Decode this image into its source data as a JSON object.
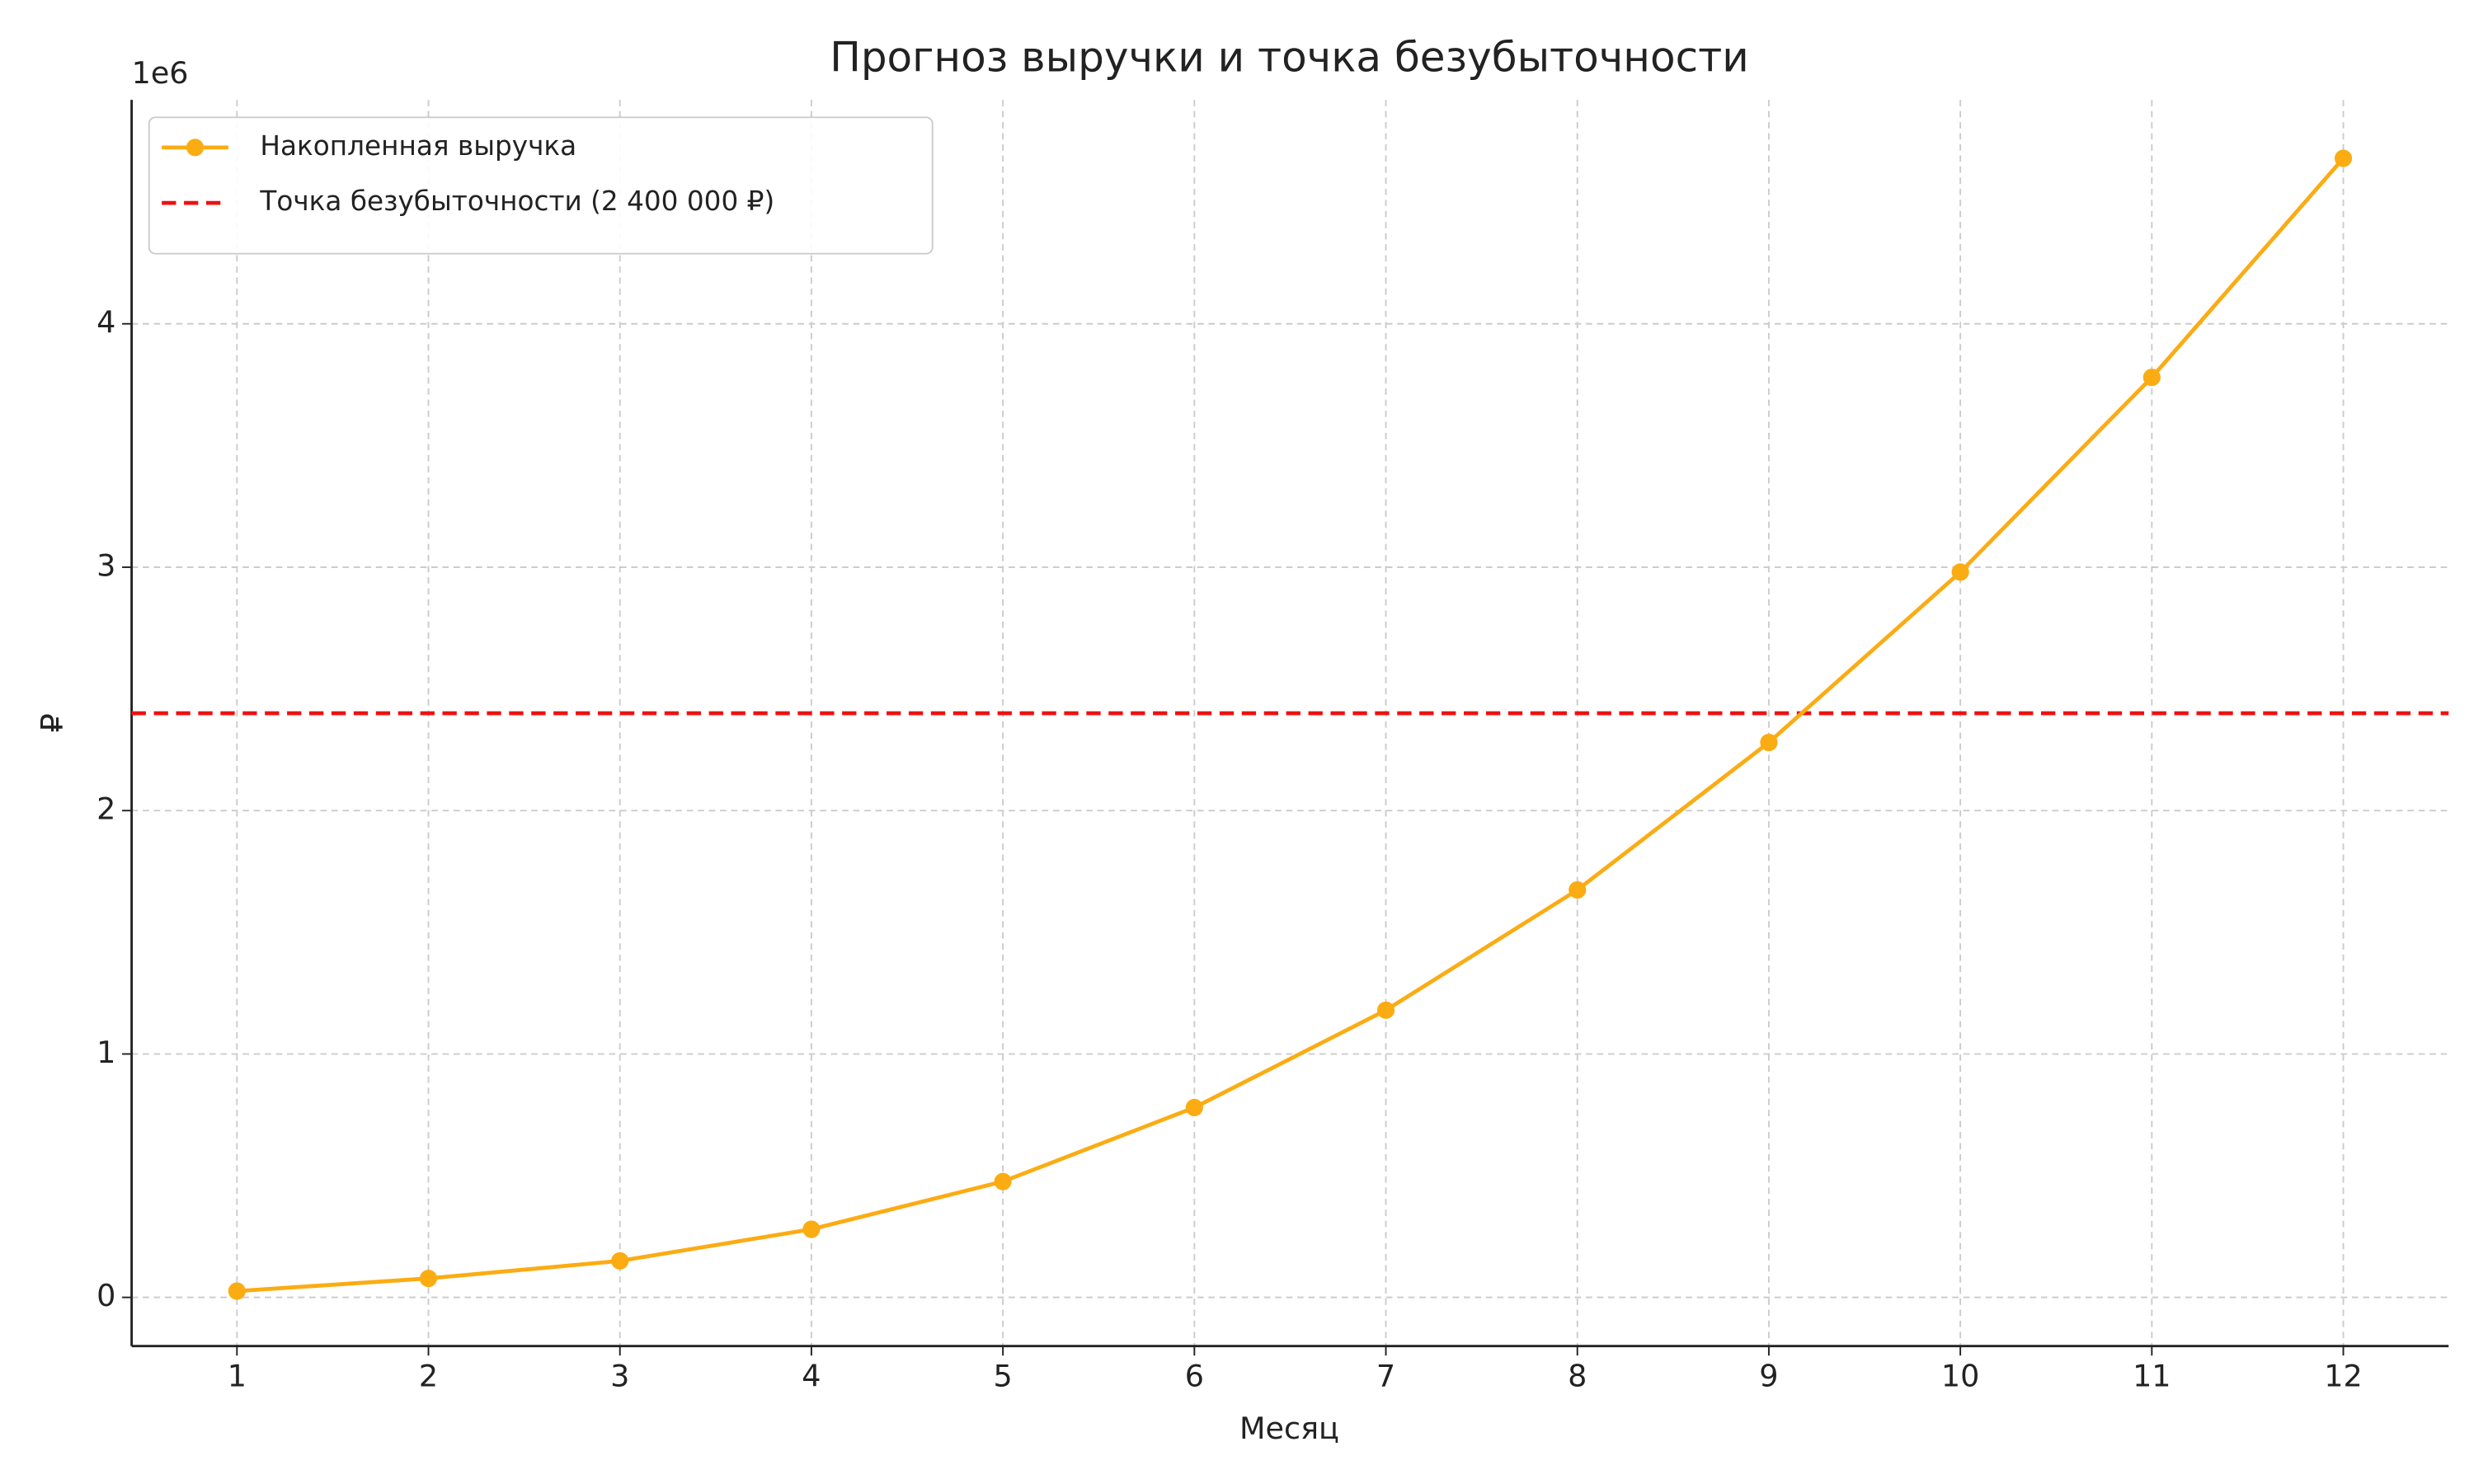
{
  "chart_data": {
    "type": "line",
    "title": "Прогноз выручки и точка безубыточности",
    "x_label": "Месяц",
    "y_label": "₽",
    "y_offset_label": "1e6",
    "x": [
      1,
      2,
      3,
      4,
      5,
      6,
      7,
      8,
      9,
      10,
      11,
      12
    ],
    "series": [
      {
        "name": "Накопленная выручка",
        "color": "#fbac13",
        "values": [
          0.026,
          0.078,
          0.15,
          0.28,
          0.476,
          0.78,
          1.18,
          1.674,
          2.28,
          2.98,
          3.78,
          4.68
        ]
      }
    ],
    "hlines": [
      {
        "name": "Точка безубыточности (2 400 000 ₽)",
        "color": "#ee1111",
        "value": 2.4
      }
    ],
    "xlim": [
      0.45,
      12.55
    ],
    "ylim": [
      -0.2,
      4.92
    ],
    "xticks": [
      1,
      2,
      3,
      4,
      5,
      6,
      7,
      8,
      9,
      10,
      11,
      12
    ],
    "yticks": [
      0,
      1,
      2,
      3,
      4
    ],
    "grid": true,
    "legend": "upper left"
  }
}
